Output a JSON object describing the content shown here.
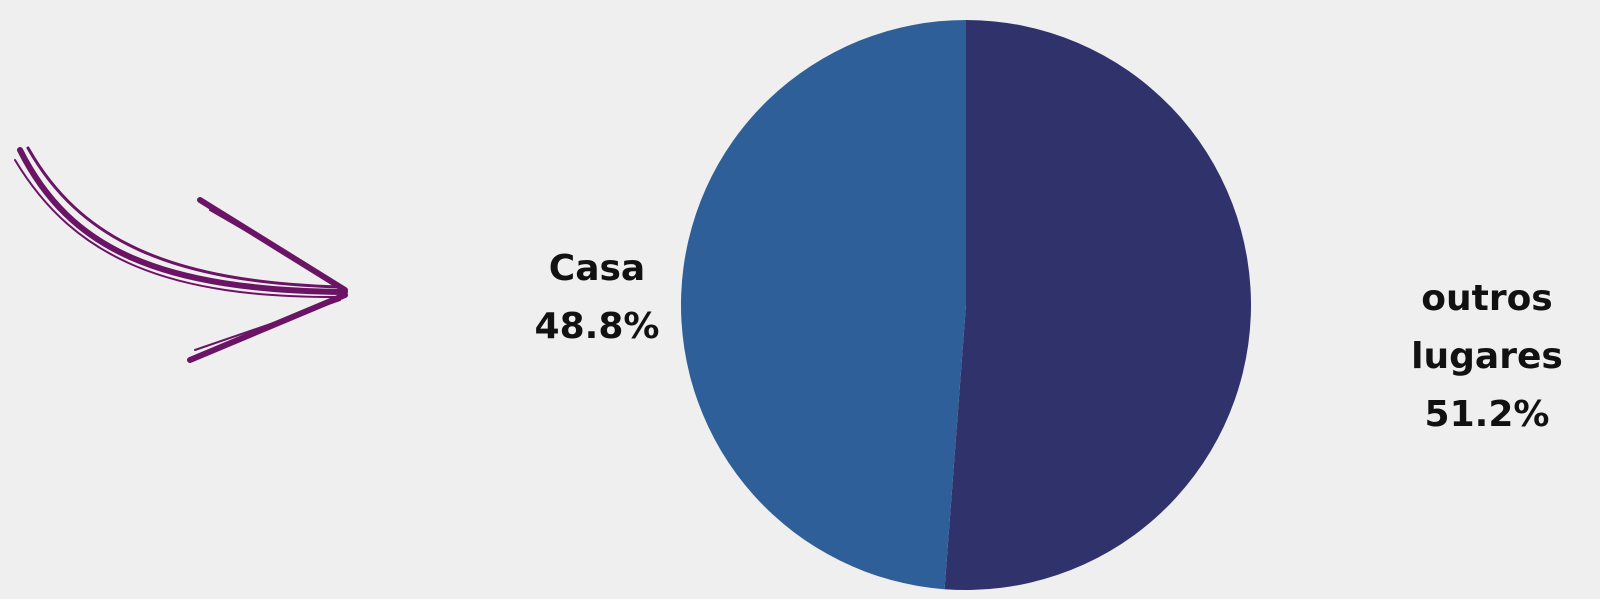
{
  "chart_data": {
    "type": "pie",
    "categories": [
      "outros lugares",
      "Casa"
    ],
    "values": [
      51.2,
      48.8
    ],
    "value_labels": [
      "51.2%",
      "48.8%"
    ],
    "colors": [
      "#30336b",
      "#2e5f98"
    ]
  }
}
